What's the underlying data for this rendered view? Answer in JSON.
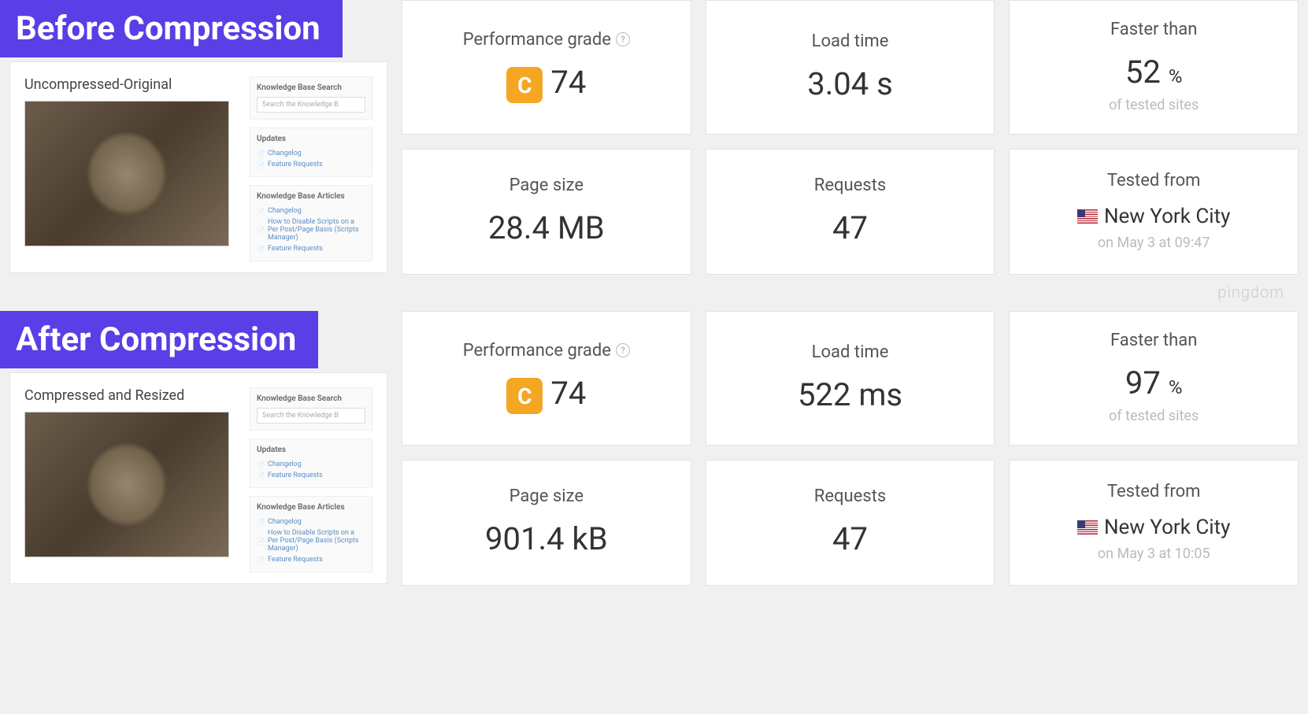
{
  "colors": {
    "banner_bg": "#5a3ee6",
    "banner_text": "#ffffff",
    "card_bg": "#ffffff",
    "card_border": "#e3e3e3",
    "page_bg": "#f0f0f0",
    "metric_label": "#555555",
    "metric_value": "#333333",
    "metric_sub": "#bbbbbb",
    "grade_badge_bg": "#f5a623",
    "link": "#5a8ec7"
  },
  "watermark": "pingdom",
  "sidebar": {
    "search_title": "Knowledge Base Search",
    "search_placeholder": "Search the Knowledge B",
    "updates_title": "Updates",
    "updates_links": [
      "Changelog",
      "Feature Requests"
    ],
    "articles_title": "Knowledge Base Articles",
    "articles_links": [
      "Changelog",
      "How to Disable Scripts on a Per Post/Page Basis (Scripts Manager)",
      "Feature Requests"
    ]
  },
  "before": {
    "banner": "Before Compression",
    "preview_title": "Uncompressed-Original",
    "metrics": {
      "perf_label": "Performance grade",
      "perf_grade_letter": "C",
      "perf_grade_score": "74",
      "load_label": "Load time",
      "load_value": "3.04 s",
      "faster_label": "Faster than",
      "faster_value": "52",
      "faster_unit": "%",
      "faster_sub": "of tested sites",
      "size_label": "Page size",
      "size_value": "28.4 MB",
      "req_label": "Requests",
      "req_value": "47",
      "tested_label": "Tested from",
      "tested_location": "New York City",
      "tested_time": "on May 3 at 09:47"
    }
  },
  "after": {
    "banner": "After Compression",
    "preview_title": "Compressed and Resized",
    "metrics": {
      "perf_label": "Performance grade",
      "perf_grade_letter": "C",
      "perf_grade_score": "74",
      "load_label": "Load time",
      "load_value": "522 ms",
      "faster_label": "Faster than",
      "faster_value": "97",
      "faster_unit": "%",
      "faster_sub": "of tested sites",
      "size_label": "Page size",
      "size_value": "901.4 kB",
      "req_label": "Requests",
      "req_value": "47",
      "tested_label": "Tested from",
      "tested_location": "New York City",
      "tested_time": "on May 3 at 10:05"
    }
  }
}
